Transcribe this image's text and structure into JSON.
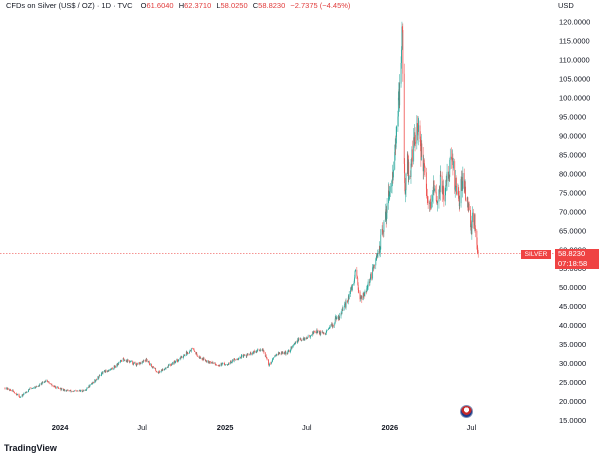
{
  "header": {
    "symbol": "CFDs on Silver (US$ / OZ) · 1D · TVC",
    "open_label": "O",
    "open": "61.6040",
    "high_label": "H",
    "high": "62.3710",
    "low_label": "L",
    "low": "58.0250",
    "close_label": "C",
    "close": "58.8230",
    "change": "−2.7375 (−4.45%)"
  },
  "currency": "USD",
  "price_badge": {
    "name": "SILVER",
    "price": "58.8230",
    "countdown": "07:18:58"
  },
  "logo_text": "TradingView",
  "colors": {
    "up": "#26a69a",
    "down": "#ef5350",
    "badge": "#ef4343",
    "last_price_line": "#ef5350"
  },
  "chart_data": {
    "type": "candlestick",
    "ylim": [
      15,
      122
    ],
    "y_ticks": [
      "15.0000",
      "20.0000",
      "25.0000",
      "30.0000",
      "35.0000",
      "40.0000",
      "45.0000",
      "50.0000",
      "55.0000",
      "60.0000",
      "65.0000",
      "70.0000",
      "75.0000",
      "80.0000",
      "85.0000",
      "90.0000",
      "95.0000",
      "100.0000",
      "105.0000",
      "110.0000",
      "115.0000",
      "120.0000"
    ],
    "x_ticks": [
      {
        "label": "2024",
        "date": "2024-01-01",
        "bold": true
      },
      {
        "label": "Jul",
        "date": "2024-07-01",
        "bold": false
      },
      {
        "label": "2025",
        "date": "2025-01-01",
        "bold": true
      },
      {
        "label": "Jul",
        "date": "2025-07-01",
        "bold": false
      },
      {
        "label": "2026",
        "date": "2026-01-01",
        "bold": true
      },
      {
        "label": "Jul",
        "date": "2026-07-01",
        "bold": false
      }
    ],
    "x_range": [
      "2023-09-01",
      "2026-07-20"
    ],
    "last_price": 58.823,
    "series": [
      {
        "date": "2023-09-01",
        "value": 23.5
      },
      {
        "date": "2023-09-20",
        "value": 22.5
      },
      {
        "date": "2023-10-05",
        "value": 21.0
      },
      {
        "date": "2023-10-25",
        "value": 23.2
      },
      {
        "date": "2023-11-15",
        "value": 24.0
      },
      {
        "date": "2023-12-01",
        "value": 25.5
      },
      {
        "date": "2023-12-15",
        "value": 24.0
      },
      {
        "date": "2024-01-05",
        "value": 23.0
      },
      {
        "date": "2024-02-01",
        "value": 22.5
      },
      {
        "date": "2024-02-25",
        "value": 22.8
      },
      {
        "date": "2024-03-15",
        "value": 25.0
      },
      {
        "date": "2024-04-05",
        "value": 27.5
      },
      {
        "date": "2024-04-25",
        "value": 28.5
      },
      {
        "date": "2024-05-20",
        "value": 31.0
      },
      {
        "date": "2024-06-01",
        "value": 30.5
      },
      {
        "date": "2024-06-20",
        "value": 29.5
      },
      {
        "date": "2024-07-10",
        "value": 30.8
      },
      {
        "date": "2024-08-05",
        "value": 27.5
      },
      {
        "date": "2024-08-25",
        "value": 29.0
      },
      {
        "date": "2024-09-20",
        "value": 31.0
      },
      {
        "date": "2024-10-20",
        "value": 33.8
      },
      {
        "date": "2024-11-05",
        "value": 31.5
      },
      {
        "date": "2024-11-25",
        "value": 30.5
      },
      {
        "date": "2024-12-15",
        "value": 29.5
      },
      {
        "date": "2025-01-05",
        "value": 29.8
      },
      {
        "date": "2025-02-01",
        "value": 31.5
      },
      {
        "date": "2025-03-01",
        "value": 32.5
      },
      {
        "date": "2025-03-25",
        "value": 33.8
      },
      {
        "date": "2025-04-08",
        "value": 29.5
      },
      {
        "date": "2025-04-25",
        "value": 32.5
      },
      {
        "date": "2025-05-20",
        "value": 32.8
      },
      {
        "date": "2025-06-10",
        "value": 36.0
      },
      {
        "date": "2025-07-01",
        "value": 36.5
      },
      {
        "date": "2025-07-20",
        "value": 38.5
      },
      {
        "date": "2025-08-10",
        "value": 37.5
      },
      {
        "date": "2025-09-01",
        "value": 41.0
      },
      {
        "date": "2025-09-20",
        "value": 44.0
      },
      {
        "date": "2025-10-10",
        "value": 50.0
      },
      {
        "date": "2025-10-17",
        "value": 54.0
      },
      {
        "date": "2025-10-28",
        "value": 47.0
      },
      {
        "date": "2025-11-10",
        "value": 49.5
      },
      {
        "date": "2025-11-28",
        "value": 55.5
      },
      {
        "date": "2025-12-10",
        "value": 61.0
      },
      {
        "date": "2025-12-20",
        "value": 66.0
      },
      {
        "date": "2025-12-28",
        "value": 74.0
      },
      {
        "date": "2026-01-05",
        "value": 79.0
      },
      {
        "date": "2026-01-12",
        "value": 85.0
      },
      {
        "date": "2026-01-18",
        "value": 93.0
      },
      {
        "date": "2026-01-23",
        "value": 103.0
      },
      {
        "date": "2026-01-27",
        "value": 113.0
      },
      {
        "date": "2026-01-29",
        "value": 118.0
      },
      {
        "date": "2026-01-31",
        "value": 98.0
      },
      {
        "date": "2026-02-03",
        "value": 75.0
      },
      {
        "date": "2026-02-08",
        "value": 83.0
      },
      {
        "date": "2026-02-14",
        "value": 79.0
      },
      {
        "date": "2026-02-22",
        "value": 87.0
      },
      {
        "date": "2026-03-02",
        "value": 93.0
      },
      {
        "date": "2026-03-09",
        "value": 87.0
      },
      {
        "date": "2026-03-16",
        "value": 83.0
      },
      {
        "date": "2026-03-24",
        "value": 73.0
      },
      {
        "date": "2026-04-01",
        "value": 70.0
      },
      {
        "date": "2026-04-08",
        "value": 76.0
      },
      {
        "date": "2026-04-16",
        "value": 72.0
      },
      {
        "date": "2026-04-24",
        "value": 79.0
      },
      {
        "date": "2026-05-02",
        "value": 73.0
      },
      {
        "date": "2026-05-10",
        "value": 80.0
      },
      {
        "date": "2026-05-18",
        "value": 84.0
      },
      {
        "date": "2026-05-26",
        "value": 77.0
      },
      {
        "date": "2026-06-03",
        "value": 72.0
      },
      {
        "date": "2026-06-10",
        "value": 78.0
      },
      {
        "date": "2026-06-17",
        "value": 76.0
      },
      {
        "date": "2026-06-24",
        "value": 72.0
      },
      {
        "date": "2026-07-01",
        "value": 66.0
      },
      {
        "date": "2026-07-05",
        "value": 70.0
      },
      {
        "date": "2026-07-10",
        "value": 65.0
      },
      {
        "date": "2026-07-16",
        "value": 58.823
      }
    ]
  }
}
